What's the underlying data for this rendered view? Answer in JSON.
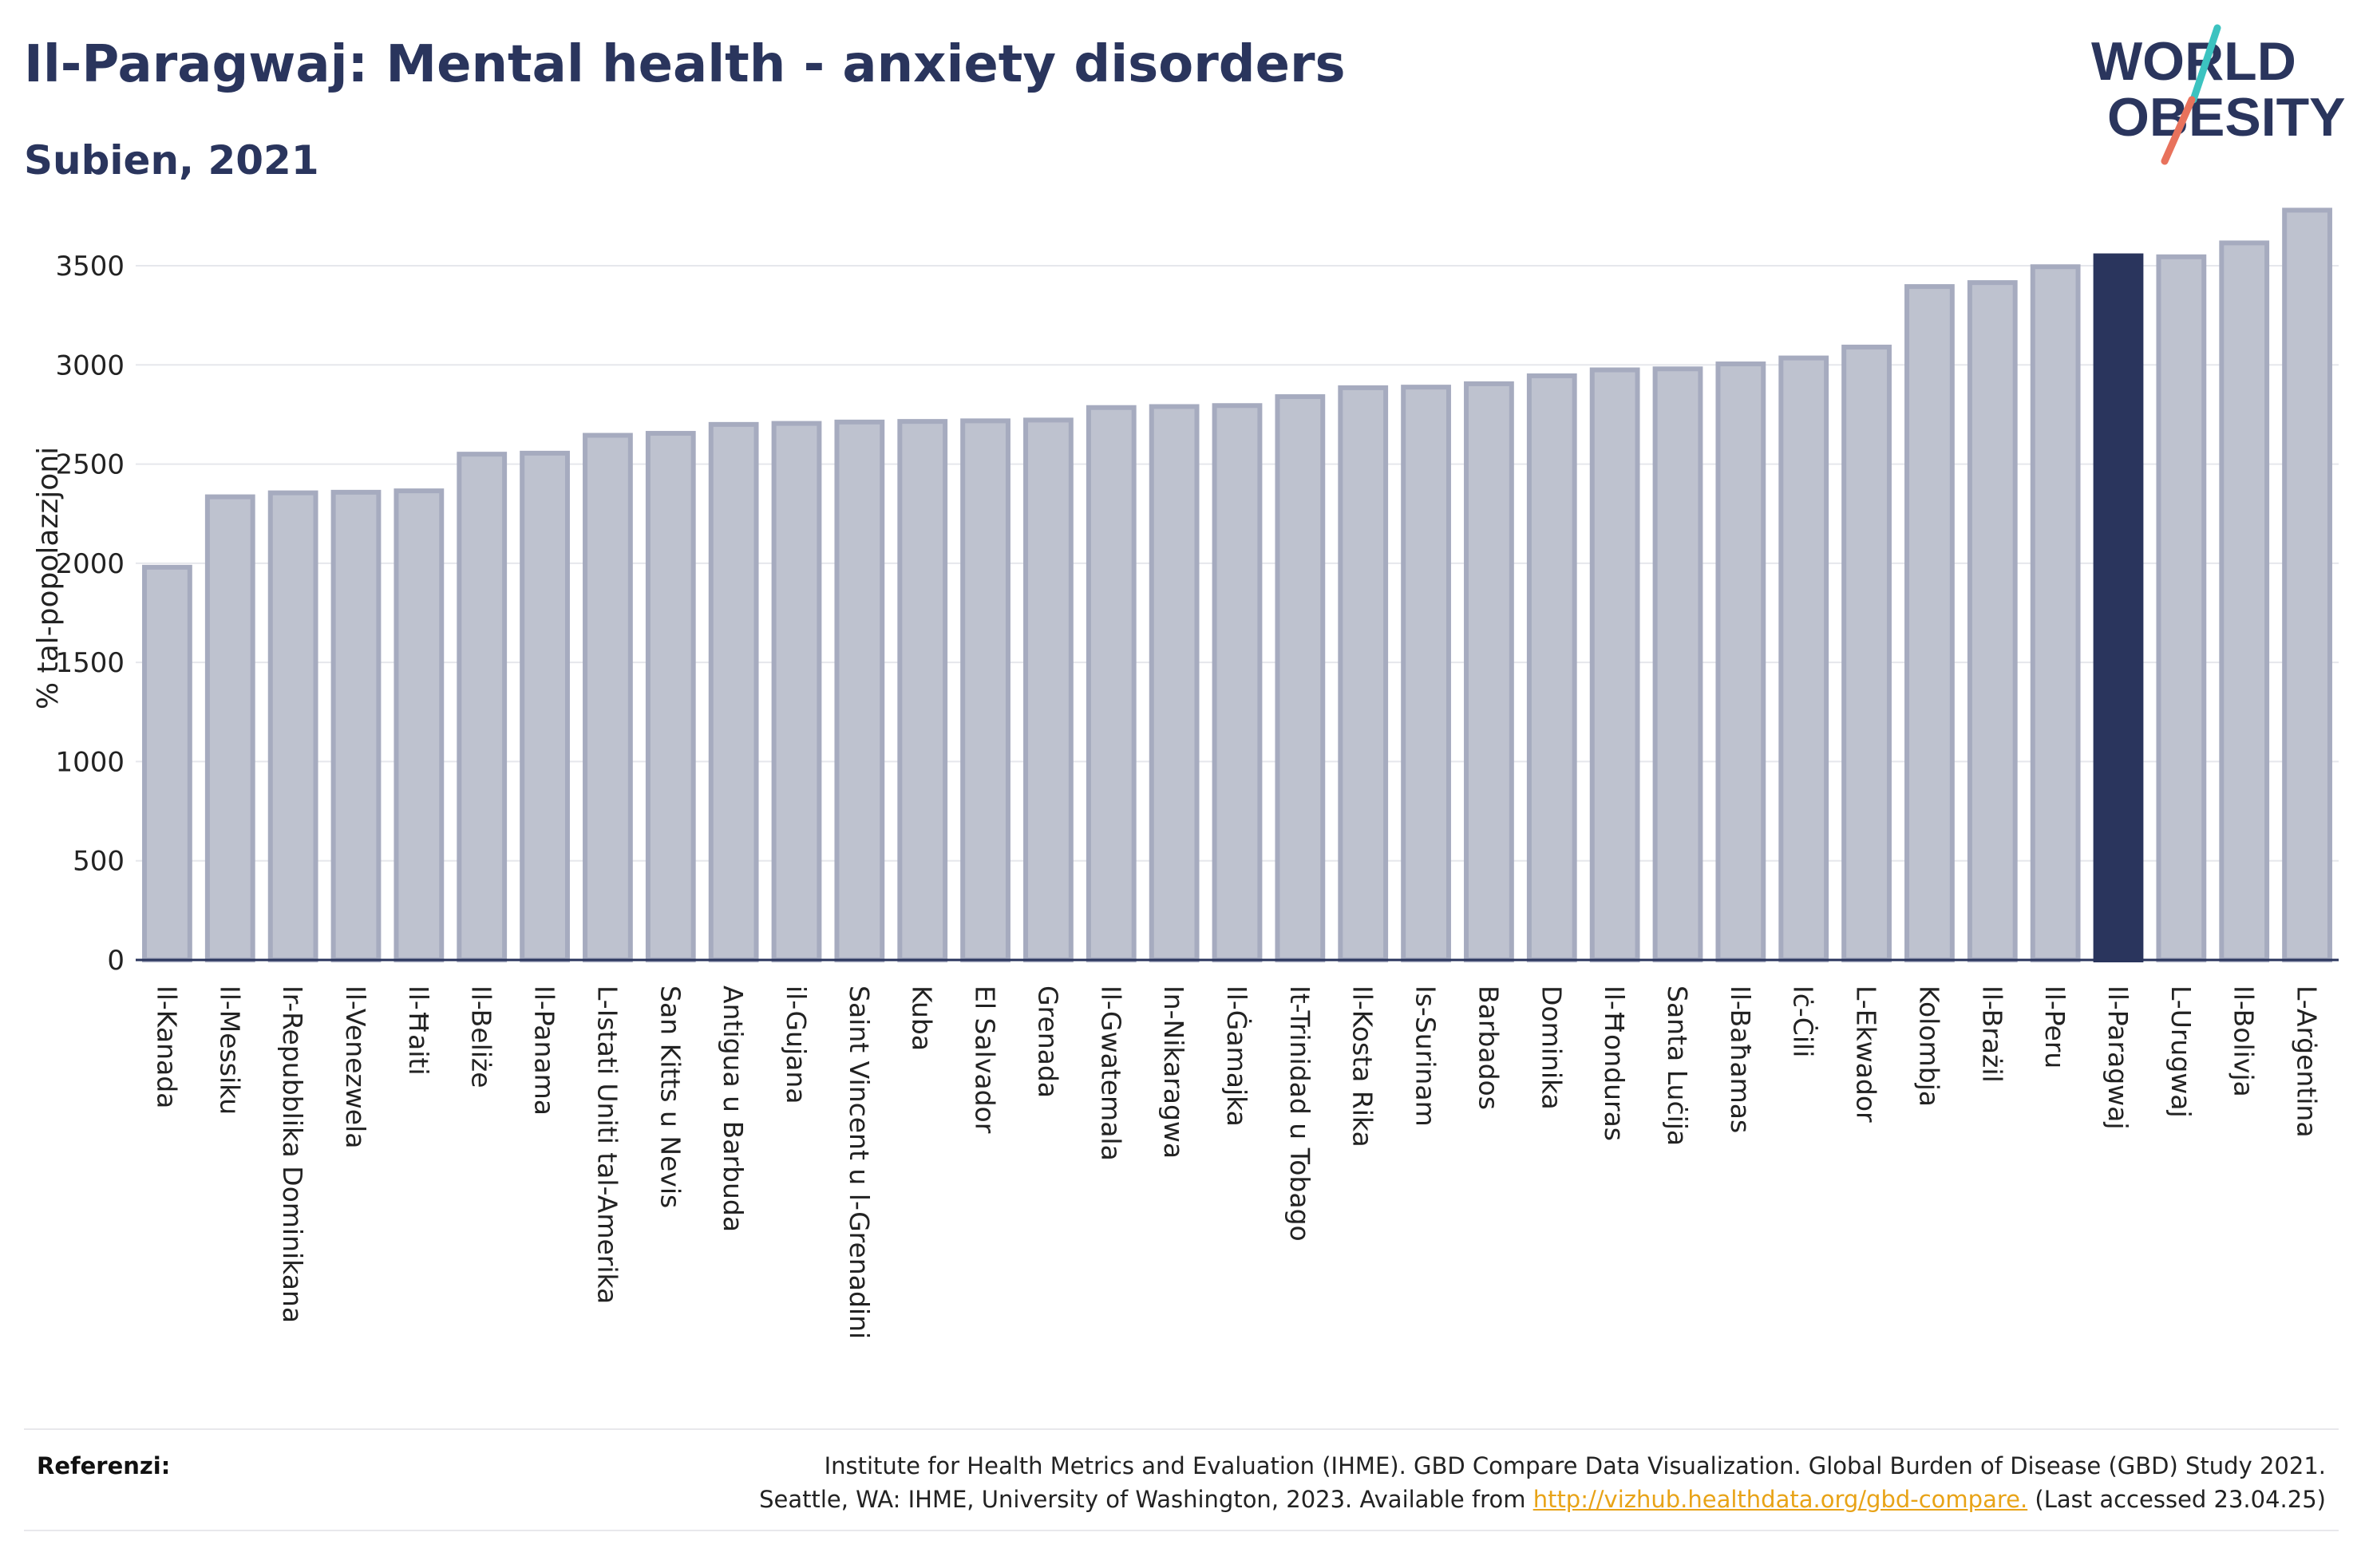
{
  "header": {
    "title": "Il-Paragwaj: Mental health - anxiety disorders",
    "subtitle": "Subien, 2021"
  },
  "logo": {
    "line1": "WORLD",
    "line2": "OBESITY"
  },
  "colors": {
    "highlight": "#2a355d",
    "bar_fill": "#bec2cf",
    "bar_stroke": "#a6abbf",
    "text": "#2a355d",
    "link": "#e8a317"
  },
  "chart_data": {
    "type": "bar",
    "title": "Il-Paragwaj: Mental health - anxiety disorders",
    "subtitle": "Subien, 2021",
    "ylabel": "% tal-popolazzjoni",
    "xlabel": "",
    "ylim": [
      0,
      3850
    ],
    "yticks": [
      0,
      500,
      1000,
      1500,
      2000,
      2500,
      3000,
      3500
    ],
    "grid": true,
    "highlight": "Il-Paragwaj",
    "categories": [
      "Il-Kanada",
      "Il-Messiku",
      "Ir-Repubblika Dominikana",
      "Il-Venezwela",
      "Il-Ħaiti",
      "Il-Beliże",
      "Il-Panama",
      "L-Istati Uniti tal-Amerika",
      "San Kitts u Nevis",
      "Antigua u Barbuda",
      "il-Gujana",
      "Saint Vincent u l-Grenadini",
      "Kuba",
      "El Salvador",
      "Grenada",
      "Il-Gwatemala",
      "In-Nikaragwa",
      "Il-Ġamajka",
      "It-Trinidad u Tobago",
      "Il-Kosta Rika",
      "Is-Surinam",
      "Barbados",
      "Dominika",
      "Il-Ħonduras",
      "Santa Luċija",
      "Il-Baħamas",
      "Iċ-Ċili",
      "L-Ekwador",
      "Kolombja",
      "Il-Brażil",
      "Il-Peru",
      "Il-Paragwaj",
      "L-Urugwaj",
      "Il-Bolivja",
      "L-Arġentina"
    ],
    "values": [
      1980,
      2335,
      2355,
      2358,
      2365,
      2550,
      2555,
      2645,
      2655,
      2700,
      2705,
      2712,
      2715,
      2718,
      2722,
      2785,
      2790,
      2795,
      2840,
      2885,
      2888,
      2905,
      2945,
      2975,
      2980,
      3005,
      3035,
      3090,
      3395,
      3415,
      3495,
      3550,
      3545,
      3615,
      3780
    ]
  },
  "footer": {
    "label": "Referenzi:",
    "line1": "Institute for Health Metrics and Evaluation (IHME). GBD Compare Data Visualization. Global Burden of Disease (GBD) Study 2021.",
    "line2_before": "Seattle, WA: IHME, University of Washington, 2023. Available from ",
    "link": "http://vizhub.healthdata.org/gbd-compare.",
    "line2_after": " (Last accessed 23.04.25)"
  }
}
